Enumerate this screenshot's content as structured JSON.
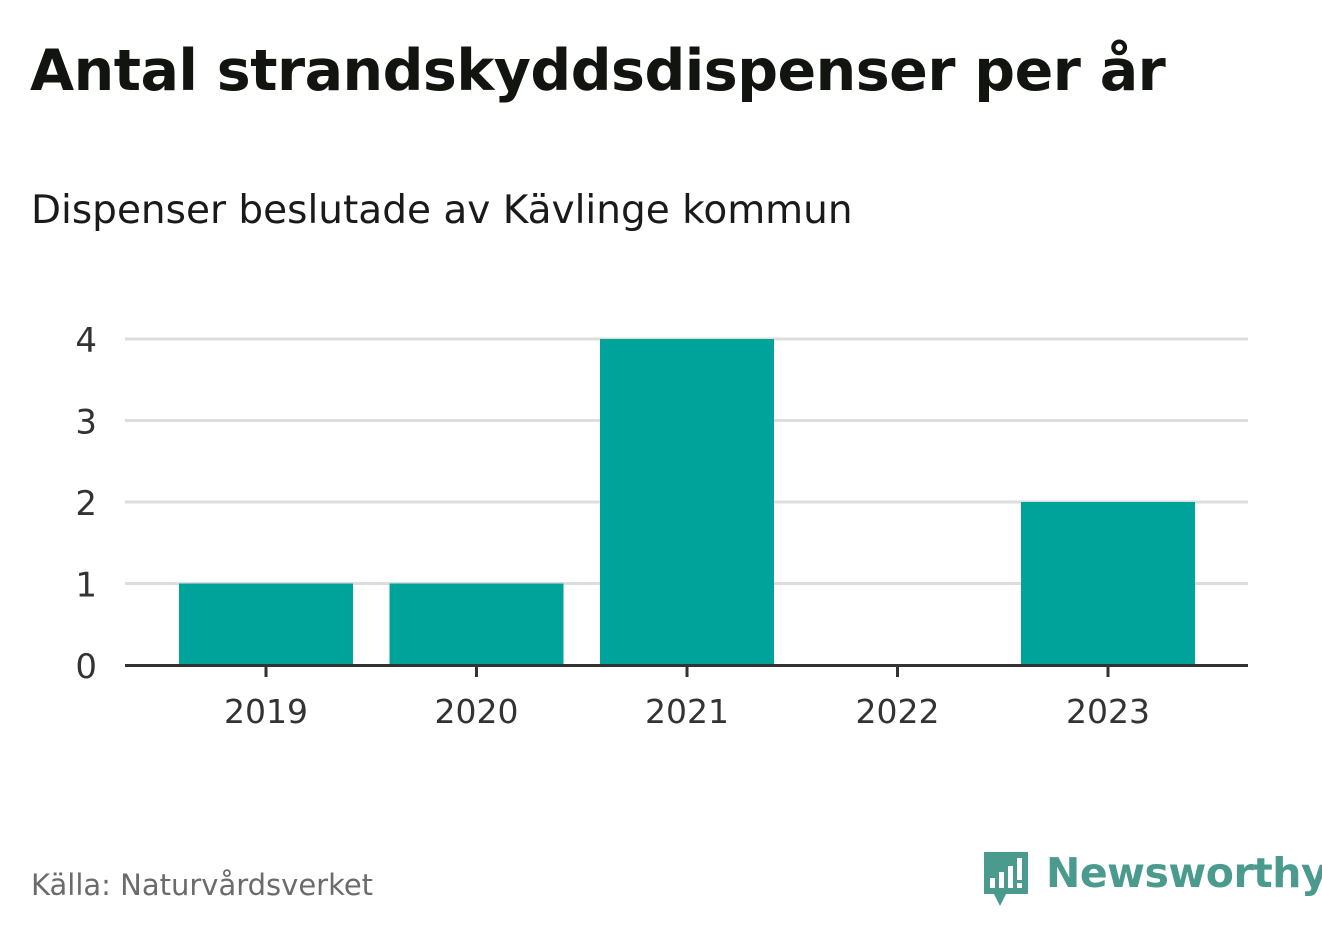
{
  "title": "Antal strandskyddsdispenser per år",
  "subtitle": "Dispenser beslutade av Kävlinge kommun",
  "source": "Källa: Naturvårdsverket",
  "logo": {
    "text": "Newsworthy",
    "icon": "newsworthy-logo-icon"
  },
  "colors": {
    "bar": "#00a39a",
    "grid": "#dddddd",
    "axis": "#333333",
    "tick_text": "#333333",
    "logo": "#4a9a8e"
  },
  "chart_data": {
    "type": "bar",
    "title": "Antal strandskyddsdispenser per år",
    "subtitle": "Dispenser beslutade av Kävlinge kommun",
    "xlabel": "",
    "ylabel": "",
    "categories": [
      "2019",
      "2020",
      "2021",
      "2022",
      "2023"
    ],
    "values": [
      1,
      1,
      4,
      0,
      2
    ],
    "ylim": [
      0,
      4
    ],
    "yticks": [
      0,
      1,
      2,
      3,
      4
    ],
    "grid": true
  }
}
